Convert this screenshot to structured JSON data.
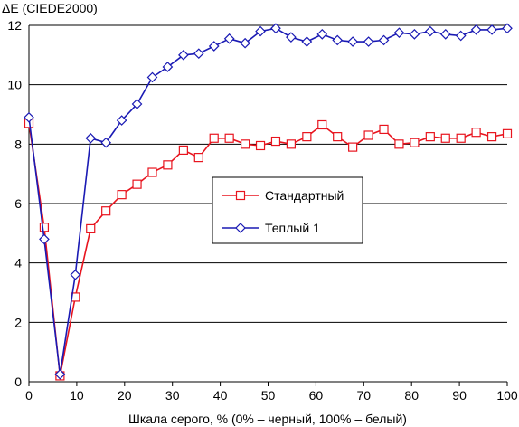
{
  "chart_data": {
    "type": "line",
    "title": "",
    "xlabel": "Шкала серого, % (0% – черный, 100% – белый)",
    "ylabel": "ΔE (CIEDE2000)",
    "xlim": [
      0,
      100
    ],
    "ylim": [
      0,
      12
    ],
    "xticks": [
      0,
      10,
      20,
      30,
      40,
      50,
      60,
      70,
      80,
      90,
      100
    ],
    "yticks": [
      0,
      2,
      4,
      6,
      8,
      10,
      12
    ],
    "grid": "horizontal",
    "legend_position": "center-right",
    "series": [
      {
        "name": "Стандартный",
        "color": "#e8141e",
        "marker": "square",
        "x": [
          0,
          3.2,
          6.5,
          9.7,
          12.9,
          16.1,
          19.4,
          22.6,
          25.8,
          29,
          32.3,
          35.5,
          38.7,
          41.9,
          45.2,
          48.4,
          51.6,
          54.8,
          58.1,
          61.3,
          64.5,
          67.7,
          71,
          74.2,
          77.4,
          80.6,
          83.9,
          87.1,
          90.3,
          93.5,
          96.8,
          100
        ],
        "values": [
          8.7,
          5.2,
          0.2,
          2.85,
          5.15,
          5.75,
          6.3,
          6.65,
          7.05,
          7.3,
          7.8,
          7.55,
          8.2,
          8.2,
          8.0,
          7.95,
          8.1,
          8.0,
          8.25,
          8.65,
          8.25,
          7.9,
          8.3,
          8.5,
          8.0,
          8.05,
          8.25,
          8.2,
          8.2,
          8.4,
          8.25,
          8.35
        ]
      },
      {
        "name": "Теплый 1",
        "color": "#1a1ab4",
        "marker": "diamond",
        "x": [
          0,
          3.2,
          6.5,
          9.7,
          12.9,
          16.1,
          19.4,
          22.6,
          25.8,
          29,
          32.3,
          35.5,
          38.7,
          41.9,
          45.2,
          48.4,
          51.6,
          54.8,
          58.1,
          61.3,
          64.5,
          67.7,
          71,
          74.2,
          77.4,
          80.6,
          83.9,
          87.1,
          90.3,
          93.5,
          96.8,
          100
        ],
        "values": [
          8.9,
          4.8,
          0.25,
          3.6,
          8.2,
          8.05,
          8.8,
          9.35,
          10.25,
          10.6,
          11.0,
          11.05,
          11.3,
          11.55,
          11.4,
          11.8,
          11.9,
          11.6,
          11.45,
          11.7,
          11.5,
          11.45,
          11.45,
          11.5,
          11.75,
          11.7,
          11.8,
          11.7,
          11.65,
          11.85,
          11.85,
          11.9
        ]
      }
    ]
  }
}
